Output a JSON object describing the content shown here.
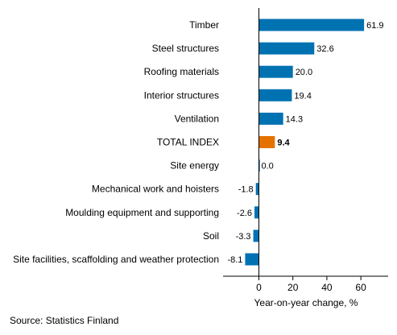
{
  "chart_data": {
    "type": "bar",
    "orientation": "horizontal",
    "categories": [
      "Timber",
      "Steel structures",
      "Roofing materials",
      "Interior structures",
      "Ventilation",
      "TOTAL INDEX",
      "Site energy",
      "Mechanical work and hoisters",
      "Moulding equipment and supporting",
      "Soil",
      "Site facilities, scaffolding and weather protection"
    ],
    "values": [
      61.9,
      32.6,
      20.0,
      19.4,
      14.3,
      9.4,
      0.0,
      -1.8,
      -2.6,
      -3.3,
      -8.1
    ],
    "value_labels": [
      "61.9",
      "32.6",
      "20.0",
      "19.4",
      "14.3",
      "9.4",
      "0.0",
      "-1.8",
      "-2.6",
      "-3.3",
      "-8.1"
    ],
    "highlight_index": 5,
    "xlabel": "Year-on-year change, %",
    "xticks": [
      0,
      20,
      40,
      60
    ],
    "xlim": [
      -20,
      75
    ],
    "colors": {
      "bar": "#0072b2",
      "highlight": "#e57200",
      "axis": "#000000"
    },
    "grid": false
  },
  "source": "Source: Statistics Finland"
}
